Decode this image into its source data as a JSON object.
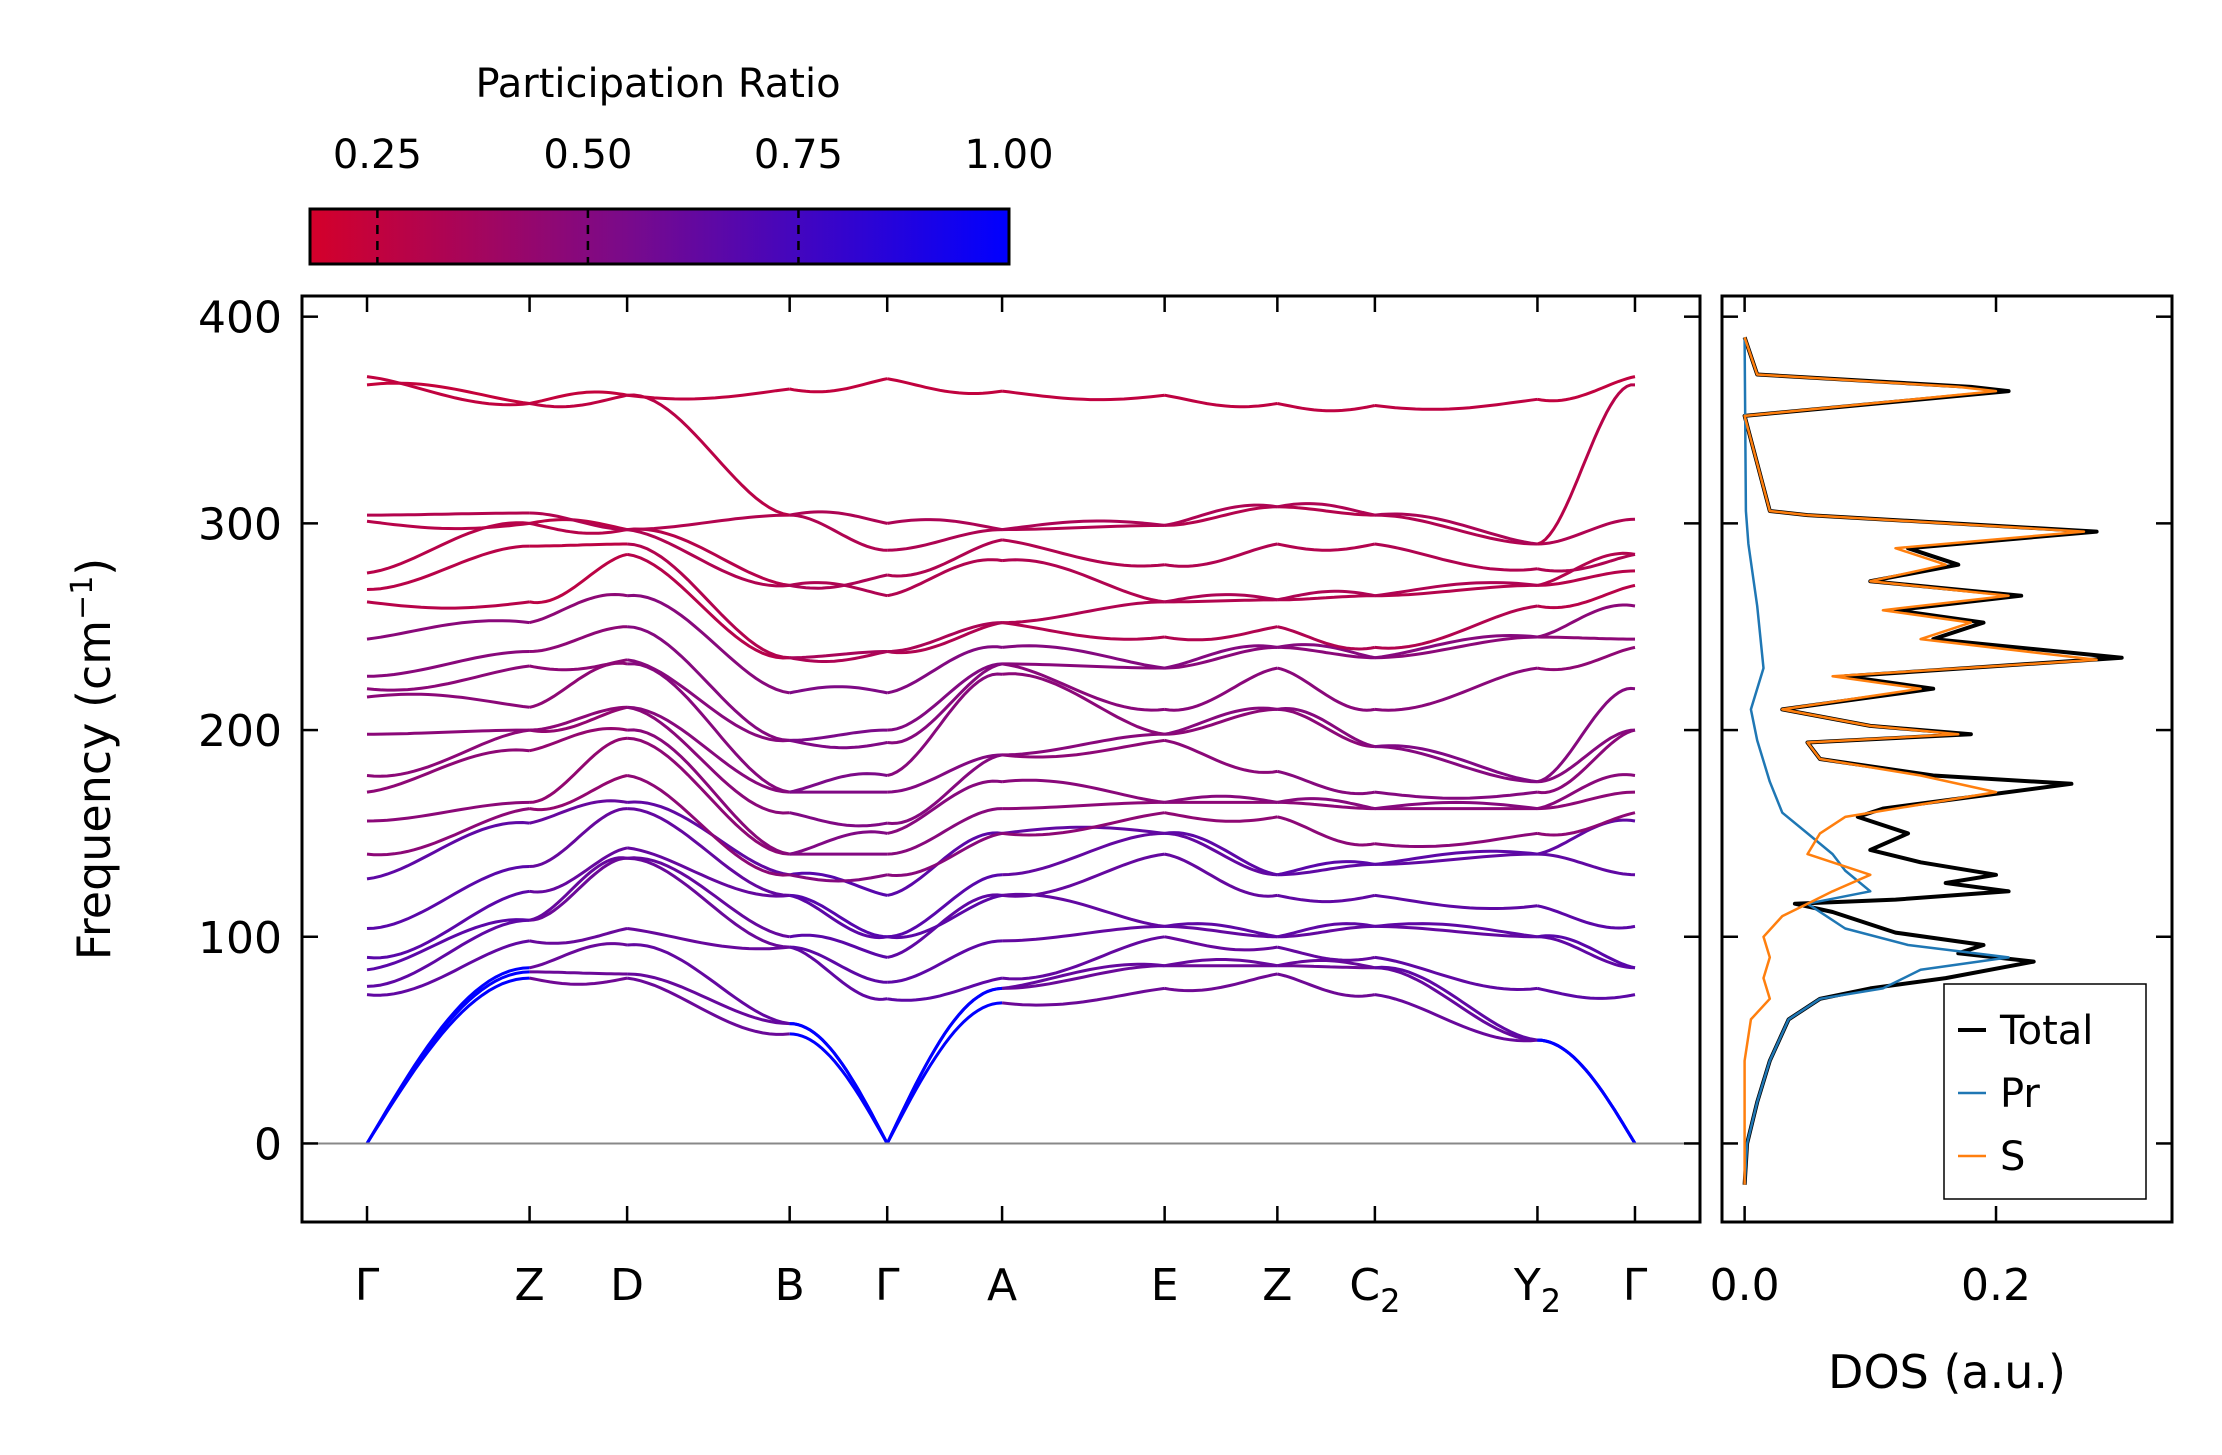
{
  "colorbar": {
    "title": "Participation Ratio",
    "ticks": [
      {
        "value": 0.25,
        "label": "0.25"
      },
      {
        "value": 0.5,
        "label": "0.50"
      },
      {
        "value": 0.75,
        "label": "0.75"
      },
      {
        "value": 1.0,
        "label": "1.00"
      }
    ],
    "range": [
      0.17,
      1.0
    ],
    "color_low": "#d4002a",
    "color_mid": "#7a0a8a",
    "color_high": "#0000ff"
  },
  "chart_data": [
    {
      "type": "line",
      "name": "phonon-dispersion",
      "ylabel_main": "Frequency (cm",
      "ylabel_sup": "−1",
      "ylabel_end": ")",
      "ylim": [
        -38,
        410
      ],
      "yticks": [
        0,
        100,
        200,
        300,
        400
      ],
      "kpoints": [
        {
          "label": "Γ",
          "sub": "",
          "x": 0.0
        },
        {
          "label": "Z",
          "sub": "",
          "x": 0.75
        },
        {
          "label": "D",
          "sub": "",
          "x": 1.2
        },
        {
          "label": "B",
          "sub": "",
          "x": 1.95
        },
        {
          "label": "Γ",
          "sub": "",
          "x": 2.4
        },
        {
          "label": "A",
          "sub": "",
          "x": 2.93
        },
        {
          "label": "E",
          "sub": "",
          "x": 3.68
        },
        {
          "label": "Z",
          "sub": "",
          "x": 4.2
        },
        {
          "label": "C",
          "sub": "2",
          "x": 4.65
        },
        {
          "label": "Y",
          "sub": "2",
          "x": 5.4
        },
        {
          "label": "Γ",
          "sub": "",
          "x": 5.85
        }
      ],
      "xlim": [
        -0.3,
        6.15
      ],
      "breaks_after_kpoint_index": [
        1,
        4,
        7
      ],
      "bands_at_kpoints": [
        [
          0,
          0,
          0,
          72,
          76,
          84,
          90,
          104,
          128,
          140,
          156,
          170,
          178,
          198,
          216,
          220,
          226,
          244,
          262,
          268,
          276,
          301,
          304,
          367,
          371
        ],
        [
          80,
          83,
          85,
          98,
          108,
          122,
          134,
          155,
          162,
          165,
          190,
          200,
          211,
          231,
          238,
          252,
          262,
          289,
          300,
          305,
          358,
          358
        ],
        [
          80,
          82,
          96,
          104,
          138,
          143,
          162,
          165,
          178,
          196,
          200,
          211,
          232,
          234,
          250,
          265,
          285,
          290,
          297,
          297,
          362,
          362
        ],
        [
          53,
          58,
          95,
          100,
          120,
          130,
          140,
          160,
          170,
          195,
          218,
          235,
          270,
          304,
          365
        ],
        [
          0,
          0,
          0,
          70,
          78,
          90,
          100,
          120,
          130,
          140,
          150,
          155,
          170,
          178,
          194,
          200,
          218,
          238,
          265,
          275,
          287,
          300,
          370
        ],
        [
          68,
          75,
          80,
          98,
          120,
          130,
          150,
          162,
          175,
          188,
          227,
          232,
          240,
          252,
          282,
          292,
          297,
          364
        ],
        [
          75,
          86,
          100,
          105,
          140,
          150,
          160,
          165,
          195,
          198,
          210,
          230,
          245,
          262,
          280,
          299,
          362
        ],
        [
          82,
          86,
          95,
          100,
          120,
          130,
          158,
          165,
          180,
          210,
          230,
          240,
          250,
          263,
          290,
          308,
          358
        ],
        [
          72,
          85,
          90,
          105,
          120,
          135,
          145,
          162,
          170,
          192,
          210,
          235,
          240,
          265,
          290,
          304,
          357
        ],
        [
          50,
          50,
          75,
          100,
          115,
          140,
          150,
          162,
          170,
          175,
          230,
          245,
          260,
          270,
          278,
          290,
          360
        ],
        [
          0,
          0,
          0,
          72,
          85,
          105,
          130,
          156,
          160,
          170,
          178,
          200,
          220,
          240,
          244,
          260,
          270,
          277,
          285,
          302,
          367,
          371
        ]
      ]
    },
    {
      "type": "line",
      "name": "density-of-states",
      "xlabel": "DOS (a.u.)",
      "xlim": [
        -0.018,
        0.34
      ],
      "xticks": [
        {
          "value": 0.0,
          "label": "0.0"
        },
        {
          "value": 0.2,
          "label": "0.2"
        }
      ],
      "ylim": [
        -38,
        410
      ],
      "legend_position": "lower-right",
      "series": [
        {
          "name": "Total",
          "color": "#000000",
          "points": [
            [
              0,
              -20
            ],
            [
              0.002,
              0
            ],
            [
              0.01,
              20
            ],
            [
              0.02,
              40
            ],
            [
              0.035,
              60
            ],
            [
              0.06,
              70
            ],
            [
              0.1,
              75
            ],
            [
              0.16,
              80
            ],
            [
              0.23,
              88
            ],
            [
              0.17,
              92
            ],
            [
              0.19,
              96
            ],
            [
              0.12,
              102
            ],
            [
              0.07,
              112
            ],
            [
              0.04,
              116
            ],
            [
              0.12,
              118
            ],
            [
              0.21,
              122
            ],
            [
              0.16,
              126
            ],
            [
              0.2,
              130
            ],
            [
              0.14,
              136
            ],
            [
              0.1,
              142
            ],
            [
              0.13,
              150
            ],
            [
              0.09,
              158
            ],
            [
              0.11,
              162
            ],
            [
              0.26,
              174
            ],
            [
              0.15,
              178
            ],
            [
              0.06,
              186
            ],
            [
              0.05,
              194
            ],
            [
              0.18,
              198
            ],
            [
              0.1,
              202
            ],
            [
              0.03,
              210
            ],
            [
              0.15,
              220
            ],
            [
              0.08,
              226
            ],
            [
              0.3,
              235
            ],
            [
              0.15,
              244
            ],
            [
              0.19,
              252
            ],
            [
              0.12,
              258
            ],
            [
              0.22,
              265
            ],
            [
              0.1,
              272
            ],
            [
              0.17,
              280
            ],
            [
              0.13,
              288
            ],
            [
              0.28,
              296
            ],
            [
              0.05,
              304
            ],
            [
              0.02,
              306
            ],
            [
              0,
              352
            ],
            [
              0.21,
              364
            ],
            [
              0.18,
              366
            ],
            [
              0.01,
              372
            ],
            [
              0,
              390
            ]
          ]
        },
        {
          "name": "Pr",
          "color": "#1f77b4",
          "points": [
            [
              0,
              -20
            ],
            [
              0.002,
              0
            ],
            [
              0.01,
              20
            ],
            [
              0.02,
              40
            ],
            [
              0.035,
              60
            ],
            [
              0.06,
              70
            ],
            [
              0.11,
              75
            ],
            [
              0.14,
              84
            ],
            [
              0.21,
              90
            ],
            [
              0.13,
              96
            ],
            [
              0.08,
              104
            ],
            [
              0.05,
              116
            ],
            [
              0.1,
              122
            ],
            [
              0.08,
              132
            ],
            [
              0.07,
              140
            ],
            [
              0.05,
              150
            ],
            [
              0.03,
              160
            ],
            [
              0.02,
              175
            ],
            [
              0.01,
              195
            ],
            [
              0.005,
              210
            ],
            [
              0.015,
              230
            ],
            [
              0.01,
              260
            ],
            [
              0.003,
              290
            ],
            [
              0.001,
              306
            ],
            [
              0,
              390
            ]
          ]
        },
        {
          "name": "S",
          "color": "#ff7f0e",
          "points": [
            [
              0,
              -20
            ],
            [
              0,
              40
            ],
            [
              0.005,
              60
            ],
            [
              0.02,
              70
            ],
            [
              0.015,
              80
            ],
            [
              0.02,
              90
            ],
            [
              0.015,
              100
            ],
            [
              0.03,
              110
            ],
            [
              0.05,
              116
            ],
            [
              0.07,
              122
            ],
            [
              0.1,
              130
            ],
            [
              0.05,
              140
            ],
            [
              0.06,
              150
            ],
            [
              0.08,
              158
            ],
            [
              0.2,
              170
            ],
            [
              0.14,
              178
            ],
            [
              0.06,
              186
            ],
            [
              0.05,
              194
            ],
            [
              0.17,
              198
            ],
            [
              0.1,
              202
            ],
            [
              0.03,
              210
            ],
            [
              0.14,
              220
            ],
            [
              0.07,
              226
            ],
            [
              0.28,
              234
            ],
            [
              0.14,
              244
            ],
            [
              0.18,
              252
            ],
            [
              0.11,
              258
            ],
            [
              0.21,
              265
            ],
            [
              0.1,
              272
            ],
            [
              0.16,
              280
            ],
            [
              0.12,
              288
            ],
            [
              0.27,
              296
            ],
            [
              0.05,
              304
            ],
            [
              0.02,
              306
            ],
            [
              0,
              352
            ],
            [
              0.2,
              364
            ],
            [
              0.17,
              366
            ],
            [
              0.01,
              372
            ],
            [
              0,
              390
            ]
          ]
        }
      ]
    }
  ]
}
